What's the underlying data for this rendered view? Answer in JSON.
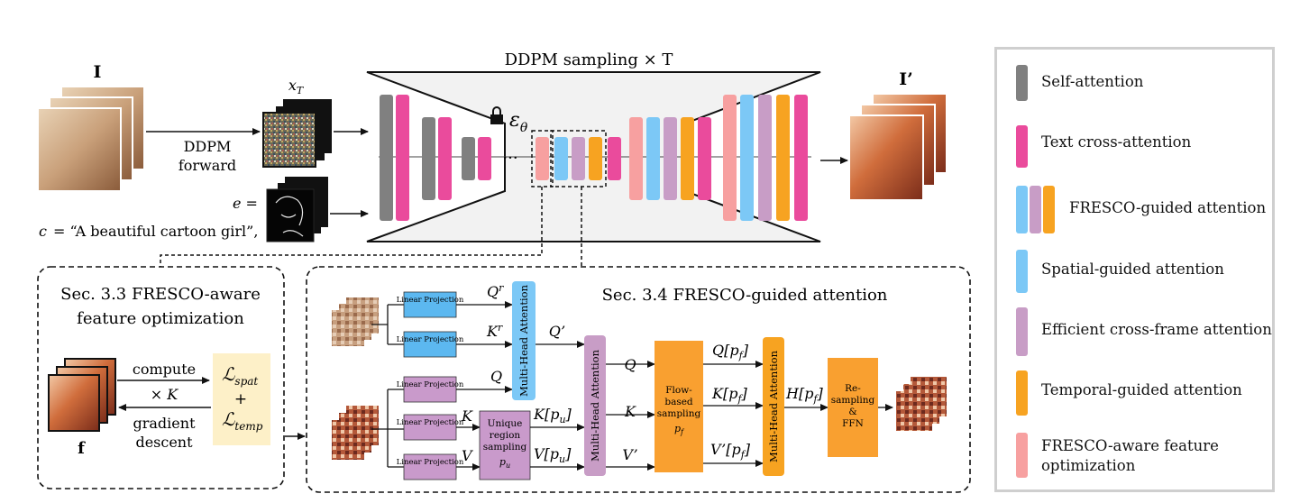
{
  "colors": {
    "self_attention": "#808080",
    "text_cross_attention": "#ea4b9c",
    "spatial_guided": "#7cc8f6",
    "efficient_cross_frame": "#c89dc6",
    "temporal_guided": "#f7a321",
    "fresco_aware": "#f7a0a0",
    "optim_box": "#fdf0c8",
    "linear_projection": "#c99acb",
    "linear_projection_top": "#5cb8f0",
    "ffn_box": "#f9a030",
    "unet_fill": "#f2f2f2"
  },
  "pipeline": {
    "input_label": "I",
    "noise_label": "x",
    "noise_sub": "T",
    "forward_label_1": "DDPM",
    "forward_label_2": "forward",
    "e_label": "e =",
    "c_label": "c",
    "prompt_text": "= “A beautiful cartoon girl”,",
    "unet_title": "DDPM sampling × T",
    "epsilon_label": "ε",
    "epsilon_sub": "θ",
    "ellipsis": "···",
    "output_label": "I’"
  },
  "optimization": {
    "title_line1": "Sec. 3.3 FRESCO-aware",
    "title_line2": "feature optimization",
    "compute_label": "compute",
    "times_k": "× K",
    "gradient_label_1": "gradient",
    "gradient_label_2": "descent",
    "loss_spat": "ℒ",
    "loss_spat_sub": "spat",
    "plus": "+",
    "loss_temp": "ℒ",
    "loss_temp_sub": "temp",
    "feature_label": "f"
  },
  "attention": {
    "title": "Sec. 3.4 FRESCO-guided attention",
    "linear_projection": "Linear Projection",
    "q_r": "Q",
    "k_r": "K",
    "r_sup": "r",
    "q": "Q",
    "k": "K",
    "v": "V",
    "q_prime": "Q’",
    "k_pu": "K[p",
    "v_pu": "V[p",
    "u_sub": "u",
    "close_bracket": "]",
    "v_prime": "V’",
    "unique_1": "Unique",
    "unique_2": "region",
    "unique_3": "sampling",
    "unique_4": "p",
    "mha": "Multi-Head Attention",
    "q2": "Q",
    "k2": "K",
    "flow_1": "Flow-",
    "flow_2": "based",
    "flow_3": "sampling",
    "flow_4": "p",
    "f_sub": "f",
    "q_pf": "Q[p",
    "k_pf": "K[p",
    "v_pf": "V’[p",
    "h_pf": "H[p",
    "resample_1": "Re-",
    "resample_2": "sampling",
    "resample_3": "&",
    "resample_4": "FFN"
  },
  "legend": {
    "items": [
      {
        "label": "Self-attention"
      },
      {
        "label": "Text cross-attention"
      },
      {
        "label": "FRESCO-guided attention"
      },
      {
        "label": "Spatial-guided attention"
      },
      {
        "label": "Efficient cross-frame attention"
      },
      {
        "label": "Temporal-guided attention"
      },
      {
        "label": "FRESCO-aware feature",
        "label2": "optimization"
      }
    ]
  }
}
